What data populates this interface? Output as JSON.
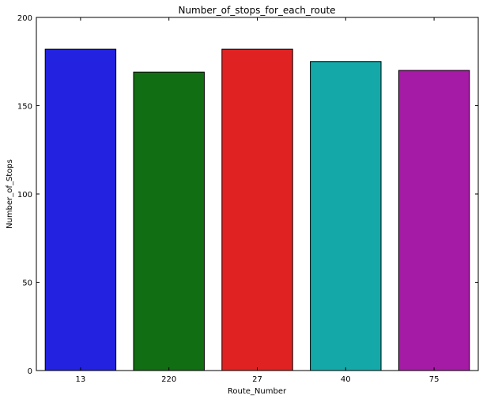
{
  "chart_data": {
    "type": "bar",
    "title": "Number_of_stops_for_each_route",
    "xlabel": "Route_Number",
    "ylabel": "Number_of_Stops",
    "categories": [
      "13",
      "220",
      "27",
      "40",
      "75"
    ],
    "values": [
      182,
      169,
      182,
      175,
      170
    ],
    "colors": [
      "#2222e0",
      "#126e12",
      "#e02222",
      "#15a8a8",
      "#a61ba6"
    ],
    "ylim": [
      0,
      200
    ],
    "yticks": [
      0,
      50,
      100,
      150,
      200
    ],
    "grid": false,
    "legend": "none"
  }
}
